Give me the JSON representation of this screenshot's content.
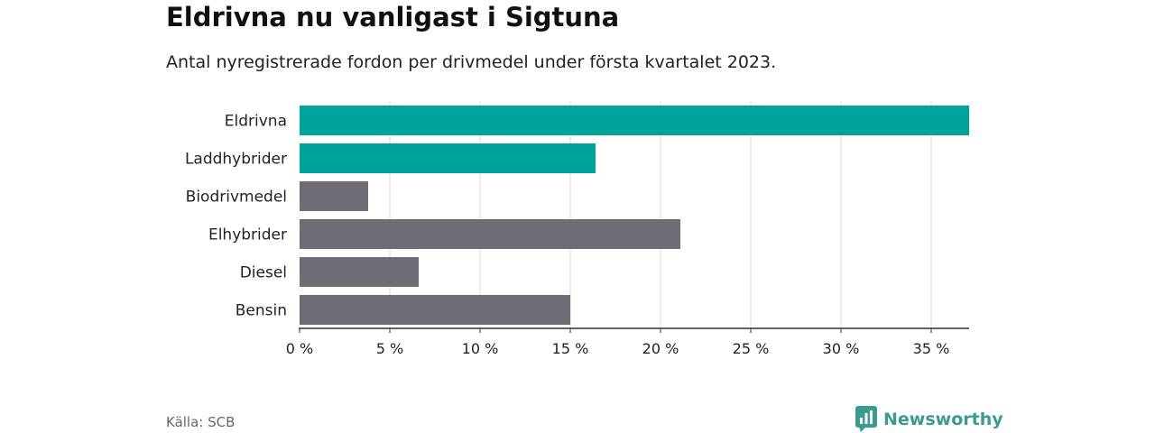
{
  "chart_data": {
    "type": "bar",
    "orientation": "horizontal",
    "title": "Eldrivna nu vanligast i Sigtuna",
    "subtitle": "Antal nyregistrerade fordon per drivmedel under första kvartalet 2023.",
    "categories": [
      "Eldrivna",
      "Laddhybrider",
      "Biodrivmedel",
      "Elhybrider",
      "Diesel",
      "Bensin"
    ],
    "values": [
      37.1,
      16.4,
      3.8,
      21.1,
      6.6,
      15.0
    ],
    "bar_colors": [
      "#00a399",
      "#00a399",
      "#6e6d75",
      "#6e6d75",
      "#6e6d75",
      "#6e6d75"
    ],
    "xlim": [
      0,
      37.1
    ],
    "xticks": [
      0,
      5,
      10,
      15,
      20,
      25,
      30,
      35
    ],
    "xtick_labels": [
      "0 %",
      "5 %",
      "10 %",
      "15 %",
      "20 %",
      "25 %",
      "30 %",
      "35 %"
    ],
    "xlabel": "",
    "ylabel": "",
    "grid": true
  },
  "footer": {
    "source": "Källa: SCB",
    "brand": "Newsworthy"
  },
  "colors": {
    "accent": "#00a399",
    "neutral": "#6e6d75",
    "grid": "#d9d9d9",
    "brand": "#3a9b8e"
  }
}
